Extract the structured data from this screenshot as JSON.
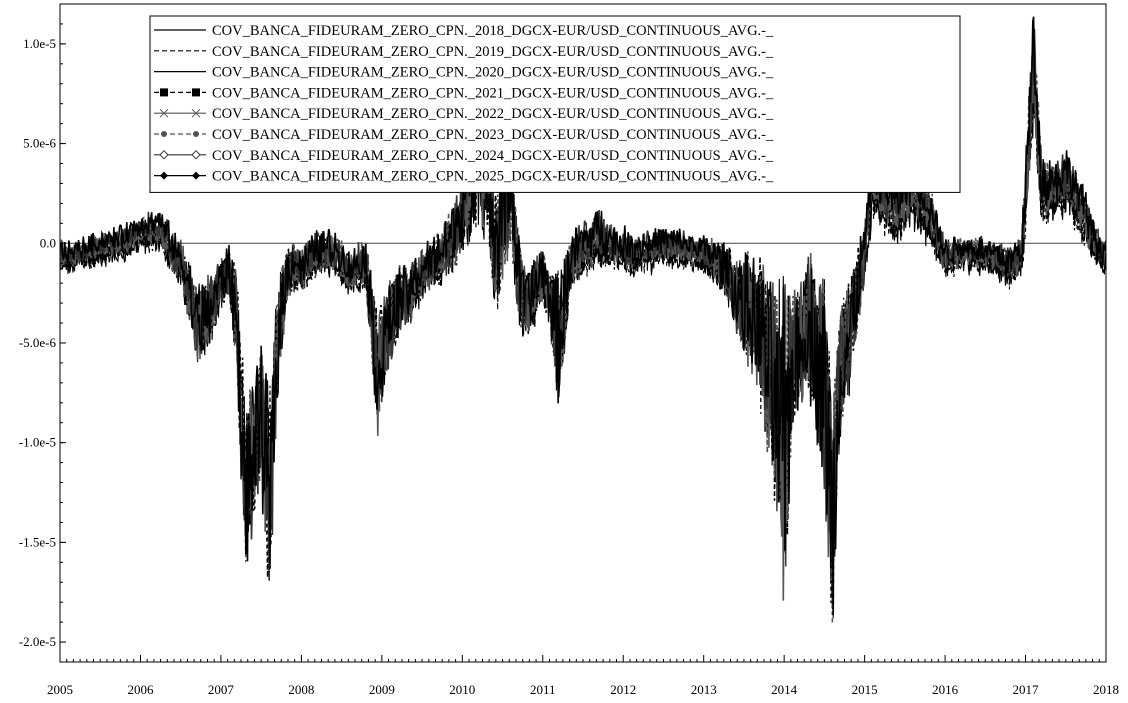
{
  "chart_data": {
    "type": "line",
    "title": "",
    "xlabel": "",
    "ylabel": "",
    "x_ticks": [
      "2005",
      "2006",
      "2007",
      "2008",
      "2009",
      "2010",
      "2011",
      "2012",
      "2013",
      "2014",
      "2015",
      "2016",
      "2017",
      "2018"
    ],
    "y_ticks": [
      "1.0e-5",
      "5.0e-6",
      "0.0",
      "-5.0e-6",
      "-1.0e-5",
      "-1.5e-5",
      "-2.0e-5"
    ],
    "y_tick_values": [
      1e-05,
      5e-06,
      0,
      -5e-06,
      -1e-05,
      -1.5e-05,
      -2e-05
    ],
    "xlim": [
      2005.0,
      2018.0
    ],
    "ylim": [
      -2.1e-05,
      1.2e-05
    ],
    "zero_line": true,
    "legend_position": "top-center",
    "series": [
      {
        "name": "COV_BANCA_FIDEURAM_ZERO_CPN._2018_DGCX-EUR/USD_CONTINUOUS_AVG.-_",
        "style": "solid",
        "marker": "none",
        "color": "#000000"
      },
      {
        "name": "COV_BANCA_FIDEURAM_ZERO_CPN._2019_DGCX-EUR/USD_CONTINUOUS_AVG.-_",
        "style": "dashed",
        "marker": "none",
        "color": "#000000"
      },
      {
        "name": "COV_BANCA_FIDEURAM_ZERO_CPN._2020_DGCX-EUR/USD_CONTINUOUS_AVG.-_",
        "style": "solid",
        "marker": "none",
        "color": "#000000"
      },
      {
        "name": "COV_BANCA_FIDEURAM_ZERO_CPN._2021_DGCX-EUR/USD_CONTINUOUS_AVG.-_",
        "style": "dashed",
        "marker": "square",
        "color": "#000000"
      },
      {
        "name": "COV_BANCA_FIDEURAM_ZERO_CPN._2022_DGCX-EUR/USD_CONTINUOUS_AVG.-_",
        "style": "solid",
        "marker": "x",
        "color": "#555555"
      },
      {
        "name": "COV_BANCA_FIDEURAM_ZERO_CPN._2023_DGCX-EUR/USD_CONTINUOUS_AVG.-_",
        "style": "dashed",
        "marker": "dot",
        "color": "#555555"
      },
      {
        "name": "COV_BANCA_FIDEURAM_ZERO_CPN._2024_DGCX-EUR/USD_CONTINUOUS_AVG.-_",
        "style": "solid",
        "marker": "diamond-open",
        "color": "#333333"
      },
      {
        "name": "COV_BANCA_FIDEURAM_ZERO_CPN._2025_DGCX-EUR/USD_CONTINUOUS_AVG.-_",
        "style": "solid",
        "marker": "diamond",
        "color": "#000000"
      }
    ],
    "envelope_x": [
      2005.0,
      2005.1,
      2005.25,
      2005.5,
      2005.75,
      2006.0,
      2006.25,
      2006.4,
      2006.55,
      2006.7,
      2006.85,
      2007.0,
      2007.1,
      2007.2,
      2007.3,
      2007.4,
      2007.5,
      2007.6,
      2007.7,
      2007.8,
      2007.9,
      2008.0,
      2008.2,
      2008.4,
      2008.6,
      2008.8,
      2008.95,
      2009.05,
      2009.2,
      2009.35,
      2009.5,
      2009.65,
      2009.8,
      2009.95,
      2010.1,
      2010.2,
      2010.3,
      2010.4,
      2010.5,
      2010.6,
      2010.7,
      2010.8,
      2010.9,
      2011.0,
      2011.1,
      2011.2,
      2011.35,
      2011.5,
      2011.7,
      2011.9,
      2012.1,
      2012.3,
      2012.5,
      2012.7,
      2012.9,
      2013.1,
      2013.3,
      2013.45,
      2013.6,
      2013.75,
      2013.9,
      2014.0,
      2014.1,
      2014.2,
      2014.3,
      2014.4,
      2014.5,
      2014.6,
      2014.7,
      2014.8,
      2014.9,
      2015.0,
      2015.1,
      2015.25,
      2015.4,
      2015.6,
      2015.8,
      2016.0,
      2016.2,
      2016.4,
      2016.6,
      2016.8,
      2016.95,
      2017.0,
      2017.1,
      2017.2,
      2017.35,
      2017.5,
      2017.65,
      2017.8,
      2017.95,
      2018.0
    ],
    "envelope_center": [
      -7e-07,
      -8e-07,
      -6e-07,
      -3e-07,
      -1e-07,
      5e-07,
      6e-07,
      -5e-07,
      -1.5e-06,
      -4e-06,
      -3.5e-06,
      -2e-06,
      -1.5e-06,
      -4e-06,
      -1.2e-05,
      -1.05e-05,
      -8e-06,
      -1.3e-05,
      -5e-06,
      -2e-06,
      -1e-06,
      -1.5e-06,
      -5e-07,
      -5e-07,
      -1.5e-06,
      -1e-06,
      -6.5e-06,
      -4.5e-06,
      -3e-06,
      -2.5e-06,
      -1.5e-06,
      -1e-06,
      -3e-07,
      8e-07,
      2.5e-06,
      5.5e-06,
      4e-06,
      -5e-07,
      1e-06,
      3e-06,
      -2e-06,
      -3e-06,
      -2.5e-06,
      -1.5e-06,
      -3e-06,
      -5e-06,
      -8e-07,
      -3e-07,
      3e-07,
      -3e-07,
      -5e-07,
      -4e-07,
      -2e-07,
      -3e-07,
      -5e-07,
      -8e-07,
      -1.5e-06,
      -3e-06,
      -3.5e-06,
      -5e-06,
      -8e-06,
      -1e-05,
      -6e-06,
      -5e-06,
      -4e-06,
      -5.5e-06,
      -7e-06,
      -1.4e-05,
      -6e-06,
      -5e-06,
      -2.5e-06,
      -5e-07,
      3e-06,
      2e-06,
      1.5e-06,
      2.5e-06,
      1.5e-06,
      -8e-07,
      -5e-07,
      -6e-07,
      -8e-07,
      -1.2e-06,
      -6e-07,
      2e-06,
      9e-06,
      2.5e-06,
      2.5e-06,
      3e-06,
      2e-06,
      5e-07,
      -8e-07,
      -5e-07
    ],
    "envelope_amplitude": [
      6e-07,
      5e-07,
      5e-07,
      5e-07,
      5e-07,
      6e-07,
      6e-07,
      8e-07,
      1.2e-06,
      1.8e-06,
      1.5e-06,
      1e-06,
      1.2e-06,
      2e-06,
      3.5e-06,
      3e-06,
      3e-06,
      5e-06,
      2.5e-06,
      1.5e-06,
      1e-06,
      1e-06,
      8e-07,
      8e-07,
      8e-07,
      1e-06,
      2.5e-06,
      2e-06,
      1.5e-06,
      1.2e-06,
      1e-06,
      1e-06,
      1.2e-06,
      1.5e-06,
      2e-06,
      3.5e-06,
      3e-06,
      2.5e-06,
      3e-06,
      2.5e-06,
      2e-06,
      1.5e-06,
      1.5e-06,
      1.2e-06,
      1.5e-06,
      3e-06,
      1e-06,
      1e-06,
      1e-06,
      8e-07,
      8e-07,
      7e-07,
      6e-07,
      6e-07,
      6e-07,
      8e-07,
      1.2e-06,
      2e-06,
      2.5e-06,
      3.5e-06,
      5e-06,
      7e-06,
      3e-06,
      2.5e-06,
      3e-06,
      3.5e-06,
      5e-06,
      5e-06,
      3e-06,
      2.5e-06,
      2e-06,
      1.2e-06,
      1.2e-06,
      1e-06,
      1e-06,
      1e-06,
      1e-06,
      7e-07,
      6e-07,
      6e-07,
      6e-07,
      8e-07,
      8e-07,
      1.5e-06,
      2e-06,
      1.2e-06,
      1e-06,
      1e-06,
      1e-06,
      8e-07,
      6e-07,
      5e-07
    ]
  }
}
